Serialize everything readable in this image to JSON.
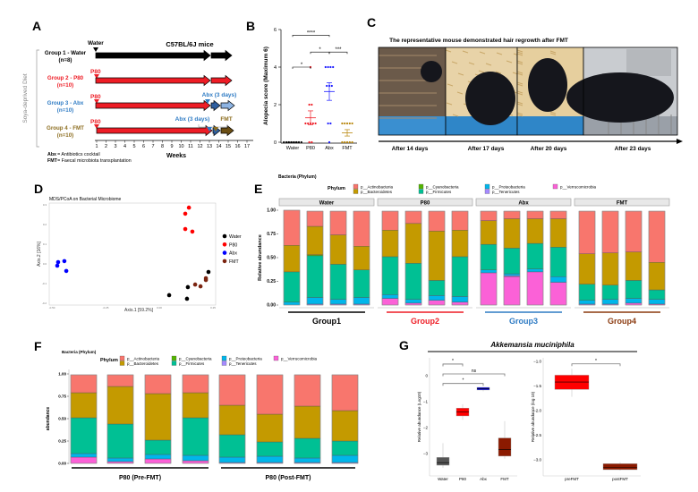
{
  "panel_labels": [
    "A",
    "B",
    "C",
    "D",
    "E",
    "F",
    "G"
  ],
  "panel_a": {
    "water_label": "Water",
    "mice_label": "C57BL/6J mice",
    "side_label": "Soya-deprived Diet",
    "p80_label": "P80",
    "abx_label": "Abx (3 days)",
    "fmt_label": "FMT",
    "weeks_label": "Weeks",
    "weeks": [
      "1",
      "2",
      "3",
      "4",
      "5",
      "6",
      "7",
      "8",
      "9",
      "10",
      "11",
      "12",
      "13",
      "14",
      "15",
      "16",
      "17"
    ],
    "groups": [
      {
        "name": "Group 1 - Water",
        "n": "(n=8)",
        "color": "#000000"
      },
      {
        "name": "Group 2 - P80",
        "n": "(n=10)",
        "color": "#ee1c25"
      },
      {
        "name": "Group 3 - Abx",
        "n": "(n=10)",
        "color": "#2e7bc4"
      },
      {
        "name": "Group 4 - FMT",
        "n": "(n=10)",
        "color": "#8c6d1f"
      }
    ],
    "footnotes": [
      {
        "abbr": "Abx",
        "text": " = Antibiotics cocktail"
      },
      {
        "abbr": "FMT",
        "text": " = Faecal microbiota transplantation"
      }
    ]
  },
  "panel_c": {
    "title": "The representative mouse demonstrated hair regrowth after FMT",
    "photos": [
      "After 14 days",
      "After 17 days",
      "After 20 days",
      "After 23 days"
    ]
  },
  "chart_data": [
    {
      "panel": "B",
      "type": "scatter",
      "ylabel": "Alopecia score (Maximum 6)",
      "ylim": [
        0,
        6
      ],
      "yticks": [
        "0",
        "2",
        "4",
        "6"
      ],
      "categories": [
        "Water",
        "P80",
        "Abx",
        "FMT"
      ],
      "colors": [
        "#000000",
        "#ee1c25",
        "#1a1aff",
        "#b8860b"
      ],
      "values": [
        [
          0,
          0,
          0,
          0,
          0,
          0,
          0,
          0
        ],
        [
          4,
          2,
          2,
          1,
          1,
          1,
          1,
          1,
          0,
          0
        ],
        [
          4,
          4,
          4,
          4,
          3,
          3,
          3,
          1,
          1,
          0
        ],
        [
          1,
          1,
          1,
          1,
          1,
          0,
          0,
          0,
          0,
          0
        ]
      ],
      "mean": [
        0,
        1.3,
        2.7,
        0.5
      ],
      "sem": [
        0,
        0.37,
        0.47,
        0.17
      ],
      "significance": [
        {
          "from": 0,
          "to": 2,
          "level": 5.7,
          "label": "****"
        },
        {
          "from": 1,
          "to": 2,
          "level": 4.8,
          "label": "*"
        },
        {
          "from": 2,
          "to": 3,
          "level": 4.8,
          "label": "***"
        },
        {
          "from": 0,
          "to": 1,
          "level": 4.0,
          "label": "*"
        }
      ]
    },
    {
      "panel": "D",
      "type": "scatter",
      "title": "MDS/PCoA on Bacterial Microbiome",
      "xlabel": "Axis.1   [59.2%]",
      "ylabel": "Axis.2   [16%]",
      "xlim": [
        -0.5,
        0.25
      ],
      "ylim": [
        -0.2,
        0.3
      ],
      "xticks": [
        "-0.50",
        "-0.25",
        "0.00",
        "0.25"
      ],
      "yticks": [
        "-0.2",
        "-0.1",
        "0.0",
        "0.1",
        "0.2",
        "0.3"
      ],
      "legend": "right",
      "series": [
        {
          "name": "Water",
          "color": "#000000",
          "points": [
            [
              0.229,
              -0.041
            ],
            [
              0.133,
              -0.118
            ],
            [
              0.046,
              -0.159
            ],
            [
              0.129,
              -0.177
            ]
          ]
        },
        {
          "name": "P80",
          "color": "#ff0000",
          "points": [
            [
              0.138,
              0.286
            ],
            [
              0.121,
              0.255
            ],
            [
              0.121,
              0.177
            ],
            [
              0.154,
              0.164
            ]
          ]
        },
        {
          "name": "Abx",
          "color": "#0000ff",
          "points": [
            [
              -0.471,
              0.009
            ],
            [
              -0.475,
              -0.009
            ],
            [
              -0.442,
              0.014
            ],
            [
              -0.433,
              -0.036
            ]
          ]
        },
        {
          "name": "FMT",
          "color": "#7b2410",
          "points": [
            [
              0.217,
              -0.073
            ],
            [
              0.217,
              -0.082
            ],
            [
              0.167,
              -0.105
            ],
            [
              0.192,
              -0.114
            ]
          ]
        }
      ]
    },
    {
      "panel": "E",
      "type": "bar",
      "stacked": true,
      "title": "Bacteria (Phylum)",
      "legend_title": "Phylum",
      "phyla": [
        "p__Actinobacteria",
        "p__Bacteroidetes",
        "p__Cyanobacteria",
        "p__Firmicutes",
        "p__Proteobacteria",
        "p__Tenericutes",
        "p__Verrucomicrobia"
      ],
      "colors": [
        "#f8766d",
        "#c49a00",
        "#53b400",
        "#00c094",
        "#00b6eb",
        "#a58aff",
        "#fb61d7"
      ],
      "ylabel": "Relative abundance",
      "ylim": [
        0,
        1
      ],
      "yticks": [
        "0.00",
        "0.25",
        "0.50",
        "0.75",
        "1.00"
      ],
      "facets": [
        {
          "name": "Water",
          "samples": [
            [
              0.37,
              0.28,
              0,
              0.32,
              0.03,
              0,
              0
            ],
            [
              0.16,
              0.3,
              0.01,
              0.44,
              0.07,
              0.01,
              0
            ],
            [
              0.25,
              0.31,
              0,
              0.37,
              0.05,
              0.01,
              0
            ],
            [
              0.37,
              0.25,
              0,
              0.29,
              0.07,
              0.01,
              0
            ]
          ]
        },
        {
          "name": "P80",
          "samples": [
            [
              0.2,
              0.28,
              0,
              0.4,
              0.04,
              0,
              0.07
            ],
            [
              0.13,
              0.42,
              0,
              0.38,
              0.04,
              0,
              0.02
            ],
            [
              0.21,
              0.52,
              0,
              0.16,
              0.05,
              0,
              0.05
            ],
            [
              0.2,
              0.28,
              0,
              0.42,
              0.06,
              0,
              0.03
            ]
          ]
        },
        {
          "name": "Abx",
          "samples": [
            [
              0.1,
              0.25,
              0,
              0.27,
              0.03,
              0,
              0.34
            ],
            [
              0.08,
              0.31,
              0,
              0.27,
              0.02,
              0.01,
              0.3
            ],
            [
              0.08,
              0.26,
              0,
              0.27,
              0.03,
              0,
              0.35
            ],
            [
              0.08,
              0.3,
              0,
              0.31,
              0.06,
              0,
              0.24
            ]
          ]
        },
        {
          "name": "FMT",
          "samples": [
            [
              0.45,
              0.32,
              0,
              0.17,
              0.04,
              0.01,
              0
            ],
            [
              0.44,
              0.34,
              0,
              0.15,
              0.05,
              0.01,
              0
            ],
            [
              0.43,
              0.3,
              0,
              0.19,
              0.05,
              0,
              0.02
            ],
            [
              0.54,
              0.29,
              0,
              0.1,
              0.05,
              0,
              0.01
            ]
          ]
        }
      ],
      "groups": [
        {
          "label": "Group1",
          "color": "#000000"
        },
        {
          "label": "Group2",
          "color": "#ee1c25"
        },
        {
          "label": "Group3",
          "color": "#2e7bc4"
        },
        {
          "label": "Group4",
          "color": "#8b3a0f"
        }
      ]
    },
    {
      "panel": "F",
      "type": "bar",
      "stacked": true,
      "title": "Bacteria (Phylum)",
      "legend_title": "Phylum",
      "ylabel": "abundance",
      "ylim": [
        0,
        1
      ],
      "yticks": [
        "0.00",
        "0.25",
        "0.50",
        "0.75",
        "1.00"
      ],
      "facets": [
        {
          "name": "P80 (Pre-FMT)",
          "samples": [
            [
              0.2,
              0.28,
              0,
              0.4,
              0.04,
              0,
              0.07
            ],
            [
              0.13,
              0.42,
              0,
              0.38,
              0.04,
              0,
              0.02
            ],
            [
              0.21,
              0.52,
              0,
              0.16,
              0.05,
              0,
              0.05
            ],
            [
              0.2,
              0.28,
              0,
              0.42,
              0.06,
              0,
              0.03
            ]
          ]
        },
        {
          "name": "P80 (Post-FMT)",
          "samples": [
            [
              0.34,
              0.33,
              0,
              0.25,
              0.06,
              0.01,
              0
            ],
            [
              0.44,
              0.31,
              0,
              0.16,
              0.07,
              0.01,
              0
            ],
            [
              0.35,
              0.36,
              0,
              0.22,
              0.05,
              0.01,
              0
            ],
            [
              0.4,
              0.34,
              0,
              0.16,
              0.08,
              0.01,
              0
            ]
          ]
        }
      ]
    },
    {
      "panel": "G",
      "type": "box",
      "title": "Akkemansia muciniphila",
      "plots": [
        {
          "ylabel": "Relative abundance (Log10)",
          "ylim": [
            -3.8,
            0.7
          ],
          "yticks": [
            0,
            -1,
            -2,
            -3
          ],
          "ytick_labels": [
            "0",
            "−1",
            "−2",
            "−3"
          ],
          "categories": [
            "Water",
            "P80",
            "Abx",
            "FMT"
          ],
          "colors": [
            "#555555",
            "#ff0000",
            "#0000cc",
            "#8b1a00"
          ],
          "boxes": [
            {
              "min": -3.55,
              "q1": -3.45,
              "median": -3.35,
              "q3": -3.15,
              "max": -2.6
            },
            {
              "min": -1.7,
              "q1": -1.55,
              "median": -1.4,
              "q3": -1.25,
              "max": -1.1
            },
            {
              "min": -0.6,
              "q1": -0.55,
              "median": -0.5,
              "q3": -0.45,
              "max": -0.45
            },
            {
              "min": -3.2,
              "q1": -3.1,
              "median": -2.85,
              "q3": -2.4,
              "max": -1.75
            }
          ],
          "significance": [
            {
              "from": 0,
              "to": 1,
              "level": 0.45,
              "label": "*"
            },
            {
              "from": 0,
              "to": 3,
              "level": 0.07,
              "label": "ns"
            },
            {
              "from": 0,
              "to": 2,
              "level": -0.3,
              "label": "*"
            }
          ]
        },
        {
          "ylabel": "Relative abundance (log 10)",
          "ylim": [
            -3.35,
            -0.9
          ],
          "yticks": [
            -1,
            -1.5,
            -2,
            -2.5,
            -3
          ],
          "ytick_labels": [
            "−1.0",
            "−1.5",
            "−2.0",
            "−2.5",
            "−3.0"
          ],
          "categories": [
            "preFMT",
            "postFMT"
          ],
          "colors": [
            "#ff0000",
            "#8b1a00"
          ],
          "boxes": [
            {
              "min": -1.72,
              "q1": -1.57,
              "median": -1.42,
              "q3": -1.28,
              "max": -1.15
            },
            {
              "min": -3.22,
              "q1": -3.2,
              "median": -3.15,
              "q3": -3.08,
              "max": -3.05
            }
          ],
          "significance": [
            {
              "from": 0,
              "to": 1,
              "level": -1.05,
              "label": "*"
            }
          ]
        }
      ]
    }
  ]
}
